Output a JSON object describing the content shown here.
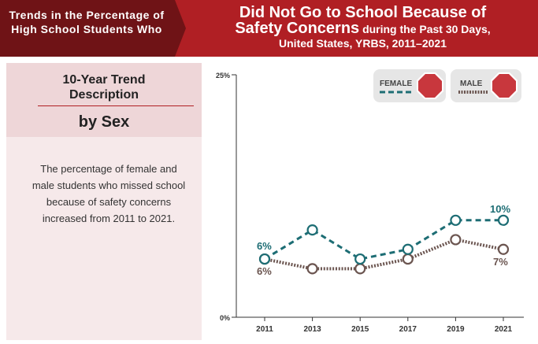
{
  "banner": {
    "left_title": "Trends in the Percentage of High School Students Who",
    "right_title_line1": "Did Not Go to School Because of",
    "right_title_bold": "Safety Concerns",
    "right_title_rest": "during the Past 30 Days,",
    "right_title_line3": "United States, YRBS, 2011–2021"
  },
  "left_panel": {
    "trend_title": "10-Year Trend Description",
    "subtitle": "by Sex",
    "description": "The percentage of female and male students who missed school because of safety concerns increased from 2011 to 2021."
  },
  "legend": {
    "female_label": "FEMALE",
    "male_label": "MALE"
  },
  "colors": {
    "banner": "#b01f24",
    "female": "#1d6d74",
    "male": "#6b5550",
    "stop_sign": "#c8373d"
  },
  "icons": [
    "stop-sign-icon"
  ],
  "chart_data": {
    "type": "line",
    "x": [
      "2011",
      "2013",
      "2015",
      "2017",
      "2019",
      "2021"
    ],
    "ylim": [
      0,
      25
    ],
    "y_ticks": [
      "0%",
      "25%"
    ],
    "grid": false,
    "legend_position": "top-right",
    "series": [
      {
        "name": "FEMALE",
        "values": [
          6,
          9,
          6,
          7,
          10,
          10
        ]
      },
      {
        "name": "MALE",
        "values": [
          6,
          5,
          5,
          6,
          8,
          7
        ]
      }
    ],
    "annotations": {
      "female_start": "6%",
      "female_end": "10%",
      "male_start": "6%",
      "male_end": "7%"
    }
  }
}
